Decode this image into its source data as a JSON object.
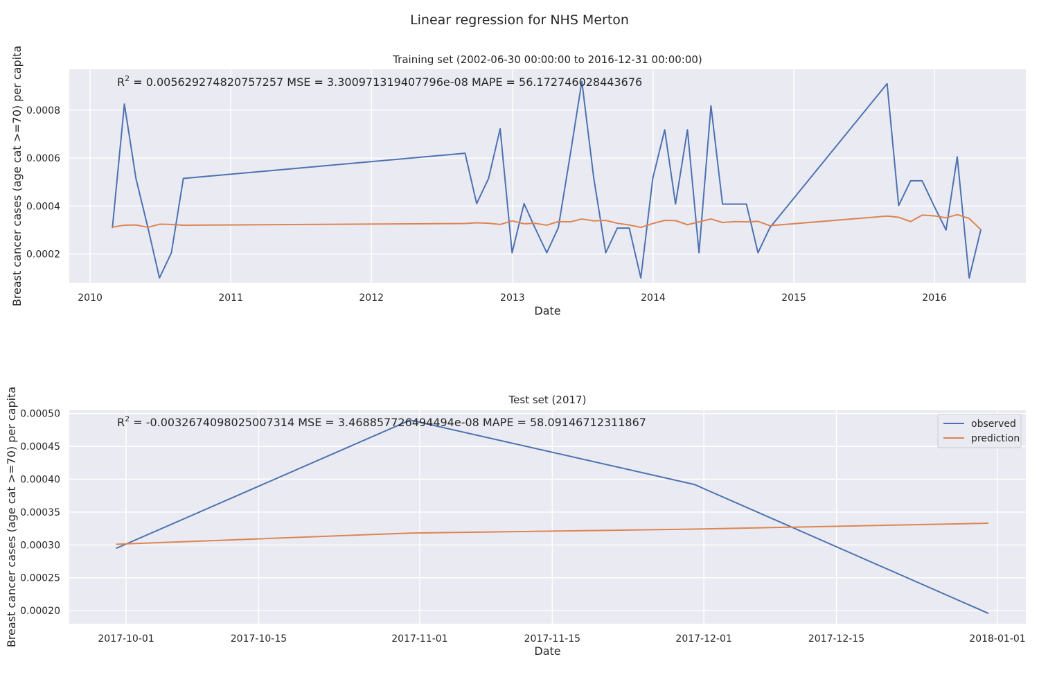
{
  "chart_data": {
    "title": "Linear regression for NHS Merton",
    "subplots": [
      {
        "type": "line",
        "title": "Training set (2002-06-30 00:00:00 to 2016-12-31 00:00:00)",
        "xlabel": "Date",
        "ylabel": "Breast cancer cases (age cat >=70) per capita",
        "metrics": {
          "r2_label": "R",
          "r2_sup": "2",
          "text": " = 0.005629274820757257  MSE = 3.300971319407796e-08  MAPE = 56.172746028443676"
        },
        "xlim": [
          "2009-11-08",
          "2016-08-25"
        ],
        "ylim": [
          8e-05,
          0.00097
        ],
        "x_ticks": [
          "2010-01-01",
          "2011-01-01",
          "2012-01-01",
          "2013-01-01",
          "2014-01-01",
          "2015-01-01",
          "2016-01-01"
        ],
        "x_tick_labels": [
          "2010",
          "2011",
          "2012",
          "2013",
          "2014",
          "2015",
          "2016"
        ],
        "y_ticks": [
          0.0002,
          0.0004,
          0.0006,
          0.0008
        ],
        "y_tick_labels": [
          "0.0002",
          "0.0004",
          "0.0006",
          "0.0008"
        ],
        "grid": true,
        "legend": false,
        "x": [
          "2010-02-28",
          "2010-03-31",
          "2010-04-30",
          "2010-05-31",
          "2010-06-30",
          "2010-07-31",
          "2010-08-31",
          "2012-08-31",
          "2012-09-30",
          "2012-10-31",
          "2012-11-30",
          "2012-12-31",
          "2013-01-31",
          "2013-02-28",
          "2013-03-31",
          "2013-04-30",
          "2013-05-31",
          "2013-06-30",
          "2013-07-31",
          "2013-08-31",
          "2013-09-30",
          "2013-10-31",
          "2013-11-30",
          "2013-12-31",
          "2014-01-31",
          "2014-02-28",
          "2014-03-31",
          "2014-04-30",
          "2014-05-31",
          "2014-06-30",
          "2014-07-31",
          "2014-08-31",
          "2014-09-30",
          "2014-10-31",
          "2015-08-31",
          "2015-09-30",
          "2015-10-31",
          "2015-11-30",
          "2015-12-31",
          "2016-01-31",
          "2016-02-29",
          "2016-03-31",
          "2016-04-30"
        ],
        "series": [
          {
            "name": "observed",
            "color": "#4c72b0",
            "values": [
              0.00031,
              0.000825,
              0.000515,
              0.00031,
              0.0001,
              0.000205,
              0.000515,
              0.00062,
              0.00041,
              0.000515,
              0.000722,
              0.000205,
              0.00041,
              0.00031,
              0.000205,
              0.00031,
              0.000615,
              0.00092,
              0.000515,
              0.000205,
              0.000308,
              0.000308,
              0.0001,
              0.000515,
              0.000718,
              0.000408,
              0.000718,
              0.000205,
              0.000818,
              0.000408,
              0.000408,
              0.000408,
              0.000205,
              0.00031,
              0.00091,
              0.000402,
              0.000505,
              0.000505,
              0.0004,
              0.0003,
              0.000605,
              0.0001,
              0.0003
            ]
          },
          {
            "name": "prediction",
            "color": "#dd8452",
            "values": [
              0.000312,
              0.00032,
              0.000321,
              0.000311,
              0.000324,
              0.000323,
              0.00032,
              0.000327,
              0.00033,
              0.000328,
              0.000323,
              0.000338,
              0.000326,
              0.000328,
              0.00032,
              0.000335,
              0.000334,
              0.000346,
              0.000338,
              0.00034,
              0.000328,
              0.000321,
              0.000311,
              0.000327,
              0.00034,
              0.000339,
              0.000322,
              0.000334,
              0.000346,
              0.000331,
              0.000335,
              0.000334,
              0.000336,
              0.000318,
              0.000358,
              0.000353,
              0.000335,
              0.000362,
              0.000359,
              0.000351,
              0.000364,
              0.000348,
              0.000302
            ]
          }
        ]
      },
      {
        "type": "line",
        "title": "Test set (2017)",
        "xlabel": "Date",
        "ylabel": "Breast cancer cases (age cat >=70) per capita",
        "metrics": {
          "r2_label": "R",
          "r2_sup": "2",
          "text": " = -0.0032674098025007314  MSE = 3.468857726494494e-08  MAPE = 58.09146712311867"
        },
        "xlim": [
          "2017-09-25",
          "2018-01-04"
        ],
        "ylim": [
          0.00018,
          0.000505
        ],
        "x_ticks": [
          "2017-10-01",
          "2017-10-15",
          "2017-11-01",
          "2017-11-15",
          "2017-12-01",
          "2017-12-15",
          "2018-01-01"
        ],
        "x_tick_labels": [
          "2017-10-01",
          "2017-10-15",
          "2017-11-01",
          "2017-11-15",
          "2017-12-01",
          "2017-12-15",
          "2018-01-01"
        ],
        "y_ticks": [
          0.0002,
          0.00025,
          0.0003,
          0.00035,
          0.0004,
          0.00045,
          0.0005
        ],
        "y_tick_labels": [
          "0.00020",
          "0.00025",
          "0.00030",
          "0.00035",
          "0.00040",
          "0.00045",
          "0.00050"
        ],
        "grid": true,
        "legend": "top-right",
        "x": [
          "2017-09-30",
          "2017-10-31",
          "2017-11-30",
          "2017-12-31"
        ],
        "series": [
          {
            "name": "observed",
            "color": "#4c72b0",
            "values": [
              0.000295,
              0.00049,
              0.000392,
              0.000196
            ]
          },
          {
            "name": "prediction",
            "color": "#dd8452",
            "values": [
              0.000301,
              0.000318,
              0.000324,
              0.000333
            ]
          }
        ]
      }
    ]
  }
}
